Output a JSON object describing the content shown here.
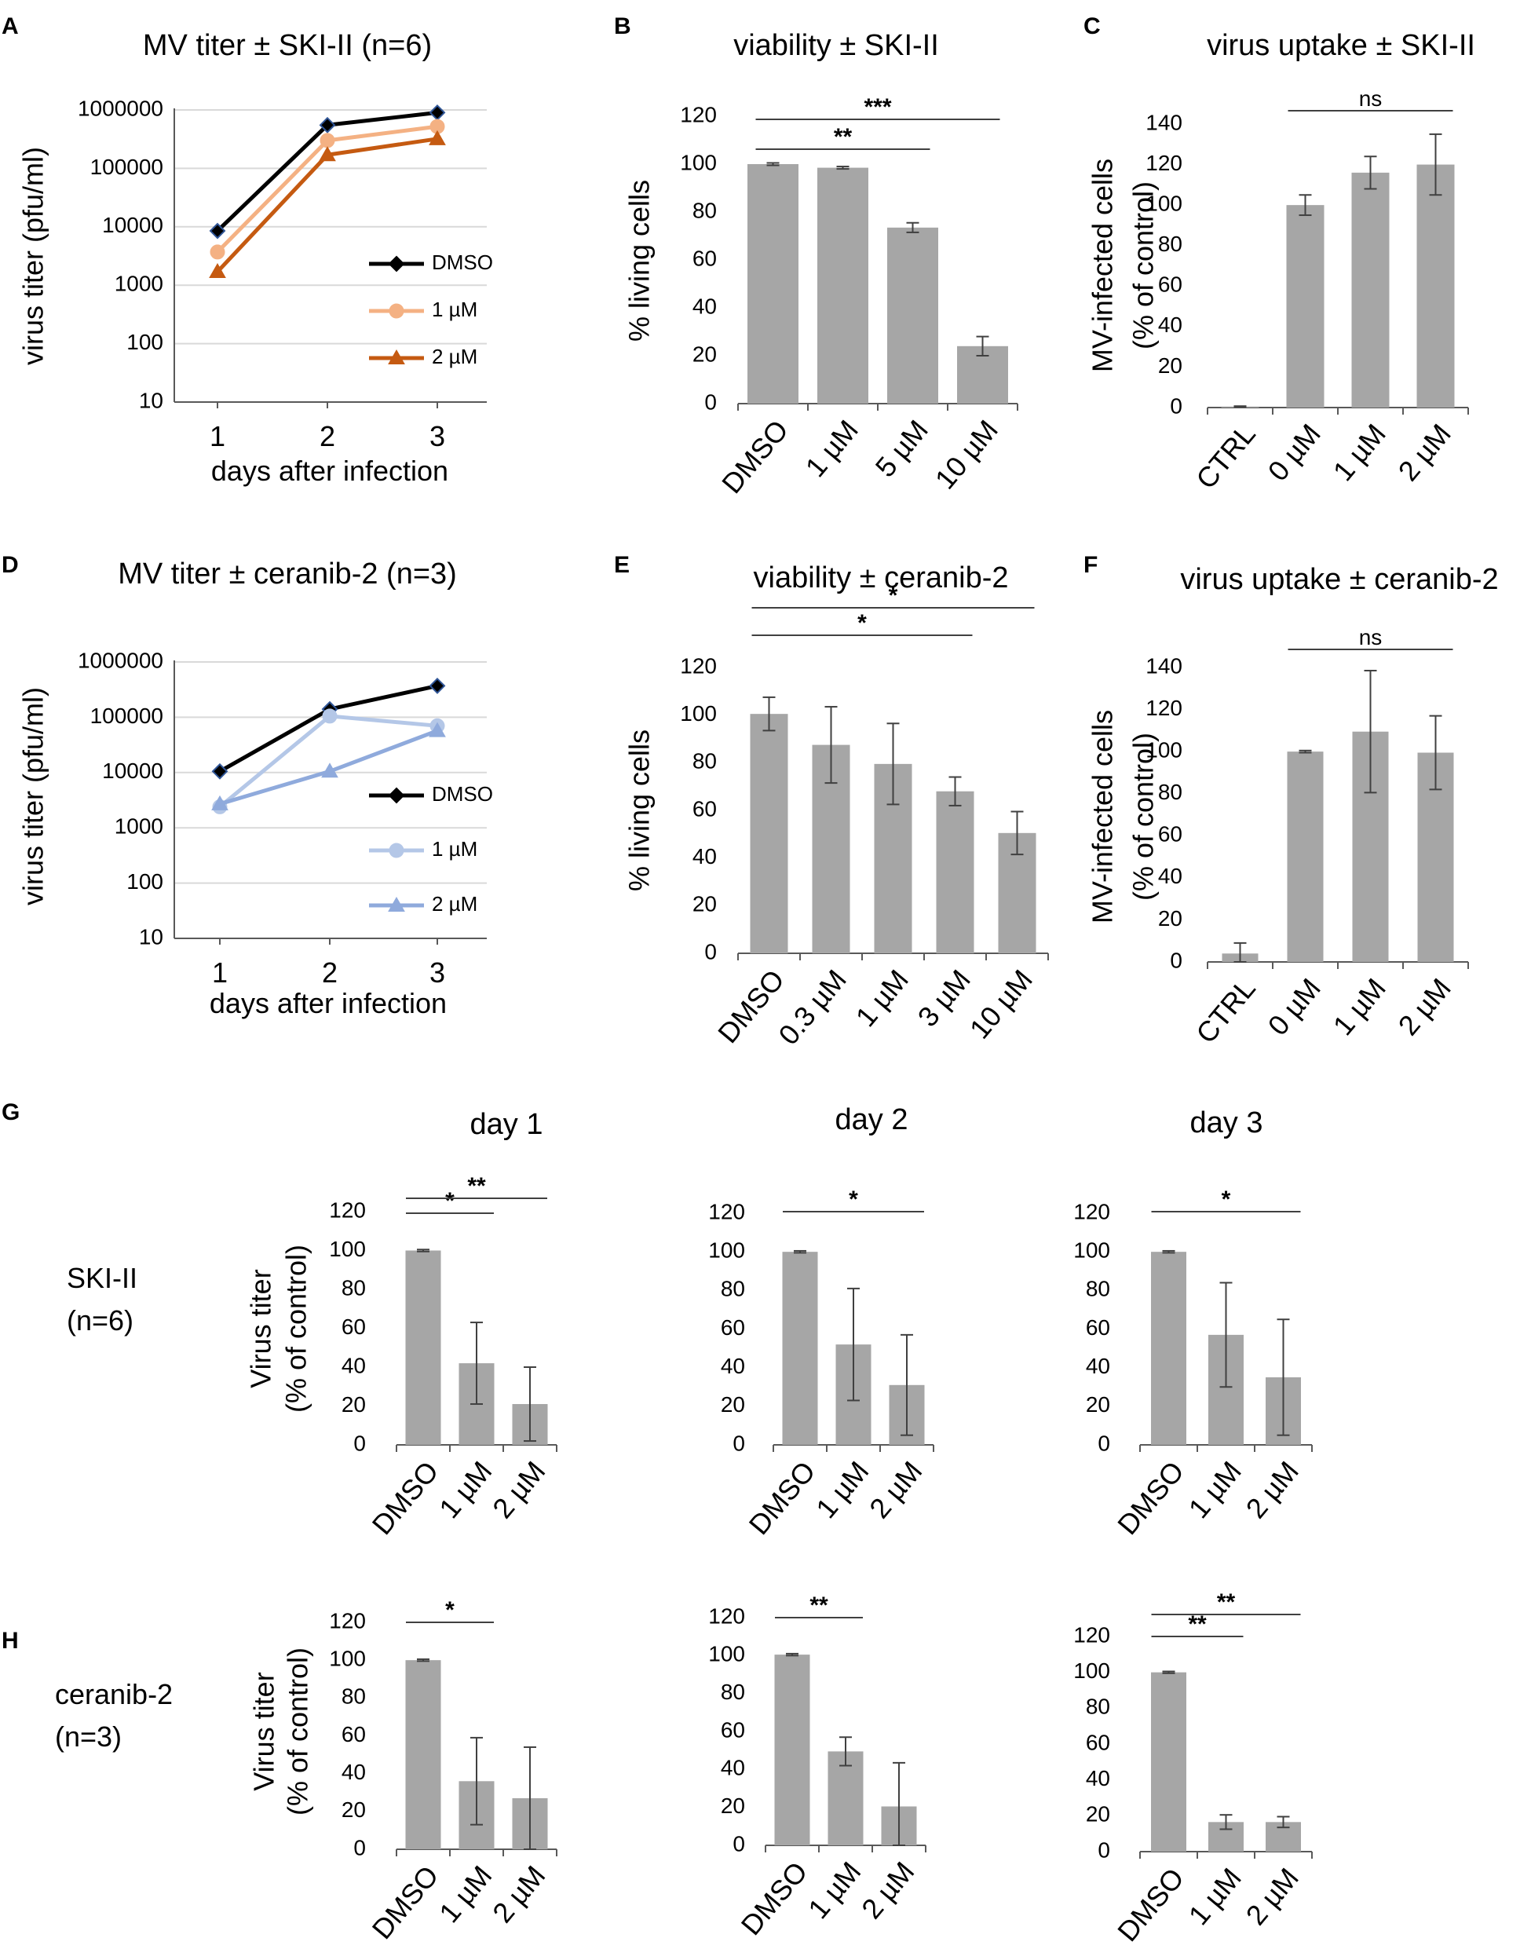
{
  "figure": {
    "panel_letters": [
      "A",
      "B",
      "C",
      "D",
      "E",
      "F",
      "G",
      "H"
    ],
    "row_labels": {
      "G": [
        "SKI-II",
        "(n=6)"
      ],
      "H": [
        "ceranib-2",
        "(n=3)"
      ]
    },
    "day_titles": [
      "day 1",
      "day 2",
      "day 3"
    ]
  },
  "colors": {
    "bar": "#a6a6a6",
    "axis": "#595959",
    "grid": "#d9d9d9",
    "dmso": "#000000",
    "ski_1uM": "#f4b183",
    "ski_2uM": "#c55a11",
    "cer_1uM": "#b4c7e7",
    "cer_2uM": "#8faadc",
    "marker_edge": "#2f5597"
  },
  "chart_data": [
    {
      "id": "A",
      "type": "line",
      "scale": "log",
      "title": "MV titer ± SKI-II (n=6)",
      "xlabel": "days after infection",
      "ylabel": "virus titer (pfu/ml)",
      "x": [
        1,
        2,
        3
      ],
      "ylim": [
        10,
        1000000
      ],
      "yticks": [
        "1000000",
        "100000",
        "10000",
        "1000",
        "100",
        "10"
      ],
      "series": [
        {
          "name": "DMSO",
          "values": [
            8500,
            550000,
            900000
          ],
          "marker": "diamond"
        },
        {
          "name": "1 µM",
          "values": [
            3700,
            300000,
            520000
          ],
          "marker": "circle"
        },
        {
          "name": "2 µM",
          "values": [
            1700,
            170000,
            320000
          ],
          "marker": "triangle"
        }
      ]
    },
    {
      "id": "B",
      "type": "bar",
      "title": "viability ± SKI-II",
      "ylabel": "% living cells",
      "categories": [
        "DMSO",
        "1 µM",
        "5 µM",
        "10 µM"
      ],
      "values": [
        100,
        98.5,
        73.5,
        24
      ],
      "errors": [
        0.5,
        0.5,
        2,
        4
      ],
      "ylim": [
        0,
        120
      ],
      "yticks": [
        "0",
        "20",
        "40",
        "60",
        "80",
        "100",
        "120"
      ],
      "significance": [
        {
          "from": 0,
          "to": 2,
          "label": "**"
        },
        {
          "from": 0,
          "to": 3,
          "label": "***"
        }
      ]
    },
    {
      "id": "C",
      "type": "bar",
      "title": "virus uptake ± SKI-II",
      "ylabel": [
        "MV-infected cells",
        "(% of control)"
      ],
      "categories": [
        "CTRL",
        "0 µM",
        "1 µM",
        "2 µM"
      ],
      "values": [
        0.5,
        100,
        116,
        120
      ],
      "errors": [
        0.2,
        5,
        8,
        15
      ],
      "ylim": [
        0,
        140
      ],
      "yticks": [
        "0",
        "20",
        "40",
        "60",
        "80",
        "100",
        "120",
        "140"
      ],
      "significance": [
        {
          "from": 1,
          "to": 3,
          "label": "ns"
        }
      ]
    },
    {
      "id": "D",
      "type": "line",
      "scale": "log",
      "title": "MV titer ± ceranib-2 (n=3)",
      "xlabel": "days after infection",
      "ylabel": "virus titer (pfu/ml)",
      "x": [
        1,
        2,
        3
      ],
      "ylim": [
        10,
        1000000
      ],
      "yticks": [
        "1000000",
        "100000",
        "10000",
        "1000",
        "100",
        "10"
      ],
      "series": [
        {
          "name": "DMSO",
          "values": [
            10500,
            140000,
            370000
          ],
          "marker": "diamond"
        },
        {
          "name": "1 µM",
          "values": [
            2400,
            105000,
            70000
          ],
          "marker": "circle"
        },
        {
          "name": "2 µM",
          "values": [
            2700,
            10500,
            57000
          ],
          "marker": "triangle"
        }
      ]
    },
    {
      "id": "E",
      "type": "bar",
      "title": "viability ± ceranib-2",
      "ylabel": "% living cells",
      "categories": [
        "DMSO",
        "0.3 µM",
        "1 µM",
        "3 µM",
        "10 µM"
      ],
      "values": [
        100.5,
        87.5,
        79.5,
        68,
        50.5
      ],
      "errors": [
        7,
        16,
        17,
        6,
        9
      ],
      "ylim": [
        0,
        120
      ],
      "yticks": [
        "0",
        "20",
        "40",
        "60",
        "80",
        "100",
        "120"
      ],
      "significance": [
        {
          "from": 0,
          "to": 3,
          "label": "*"
        },
        {
          "from": 0,
          "to": 4,
          "label": "*"
        }
      ]
    },
    {
      "id": "F",
      "type": "bar",
      "title": "virus uptake ± ceranib-2",
      "ylabel": [
        "MV-infected cells",
        "(% of control)"
      ],
      "categories": [
        "CTRL",
        "0 µM",
        "1 µM",
        "2 µM"
      ],
      "values": [
        4,
        100,
        109.5,
        99.5
      ],
      "errors": [
        5,
        0.5,
        29,
        17.5
      ],
      "ylim": [
        0,
        140
      ],
      "yticks": [
        "0",
        "20",
        "40",
        "60",
        "80",
        "100",
        "120",
        "140"
      ],
      "significance": [
        {
          "from": 1,
          "to": 3,
          "label": "ns"
        }
      ]
    },
    {
      "id": "G1",
      "type": "bar",
      "title": "day 1",
      "ylabel": [
        "Virus titer",
        "(% of control)"
      ],
      "categories": [
        "DMSO",
        "1 µM",
        "2 µM"
      ],
      "values": [
        100,
        42,
        21
      ],
      "errors": [
        0.5,
        21,
        19
      ],
      "ylim": [
        0,
        120
      ],
      "yticks": [
        "0",
        "20",
        "40",
        "60",
        "80",
        "100",
        "120"
      ],
      "significance": [
        {
          "from": 0,
          "to": 1,
          "label": "*"
        },
        {
          "from": 0,
          "to": 2,
          "label": "**"
        }
      ]
    },
    {
      "id": "G2",
      "type": "bar",
      "title": "day 2",
      "categories": [
        "DMSO",
        "1 µM",
        "2 µM"
      ],
      "values": [
        100,
        52,
        31
      ],
      "errors": [
        0.5,
        29,
        26
      ],
      "ylim": [
        0,
        120
      ],
      "yticks": [
        "0",
        "20",
        "40",
        "60",
        "80",
        "100",
        "120"
      ],
      "significance": [
        {
          "from": 0,
          "to": 2,
          "label": "*"
        }
      ]
    },
    {
      "id": "G3",
      "type": "bar",
      "title": "day 3",
      "categories": [
        "DMSO",
        "1 µM",
        "2 µM"
      ],
      "values": [
        100,
        57,
        35
      ],
      "errors": [
        0.5,
        27,
        30
      ],
      "ylim": [
        0,
        120
      ],
      "yticks": [
        "0",
        "20",
        "40",
        "60",
        "80",
        "100",
        "120"
      ],
      "significance": [
        {
          "from": 0,
          "to": 2,
          "label": "*"
        }
      ]
    },
    {
      "id": "H1",
      "type": "bar",
      "ylabel": [
        "Virus titer",
        "(% of control)"
      ],
      "categories": [
        "DMSO",
        "1 µM",
        "2 µM"
      ],
      "values": [
        100,
        36,
        27
      ],
      "errors": [
        0.5,
        23,
        27
      ],
      "ylim": [
        0,
        120
      ],
      "yticks": [
        "0",
        "20",
        "40",
        "60",
        "80",
        "100",
        "120"
      ],
      "significance": [
        {
          "from": 0,
          "to": 1,
          "label": "*"
        }
      ]
    },
    {
      "id": "H2",
      "type": "bar",
      "categories": [
        "DMSO",
        "1 µM",
        "2 µM"
      ],
      "values": [
        100.5,
        49.5,
        20.5
      ],
      "errors": [
        0.5,
        7.5,
        23
      ],
      "ylim": [
        0,
        120
      ],
      "yticks": [
        "0",
        "20",
        "40",
        "60",
        "80",
        "100",
        "120"
      ],
      "significance": [
        {
          "from": 0,
          "to": 1,
          "label": "**"
        }
      ]
    },
    {
      "id": "H3",
      "type": "bar",
      "categories": [
        "DMSO",
        "1 µM",
        "2 µM"
      ],
      "values": [
        100,
        16.5,
        16.5
      ],
      "errors": [
        0.5,
        4,
        3
      ],
      "ylim": [
        0,
        120
      ],
      "yticks": [
        "0",
        "20",
        "40",
        "60",
        "80",
        "100",
        "120"
      ],
      "significance": [
        {
          "from": 0,
          "to": 1,
          "label": "**"
        },
        {
          "from": 0,
          "to": 2,
          "label": "**"
        }
      ]
    }
  ]
}
